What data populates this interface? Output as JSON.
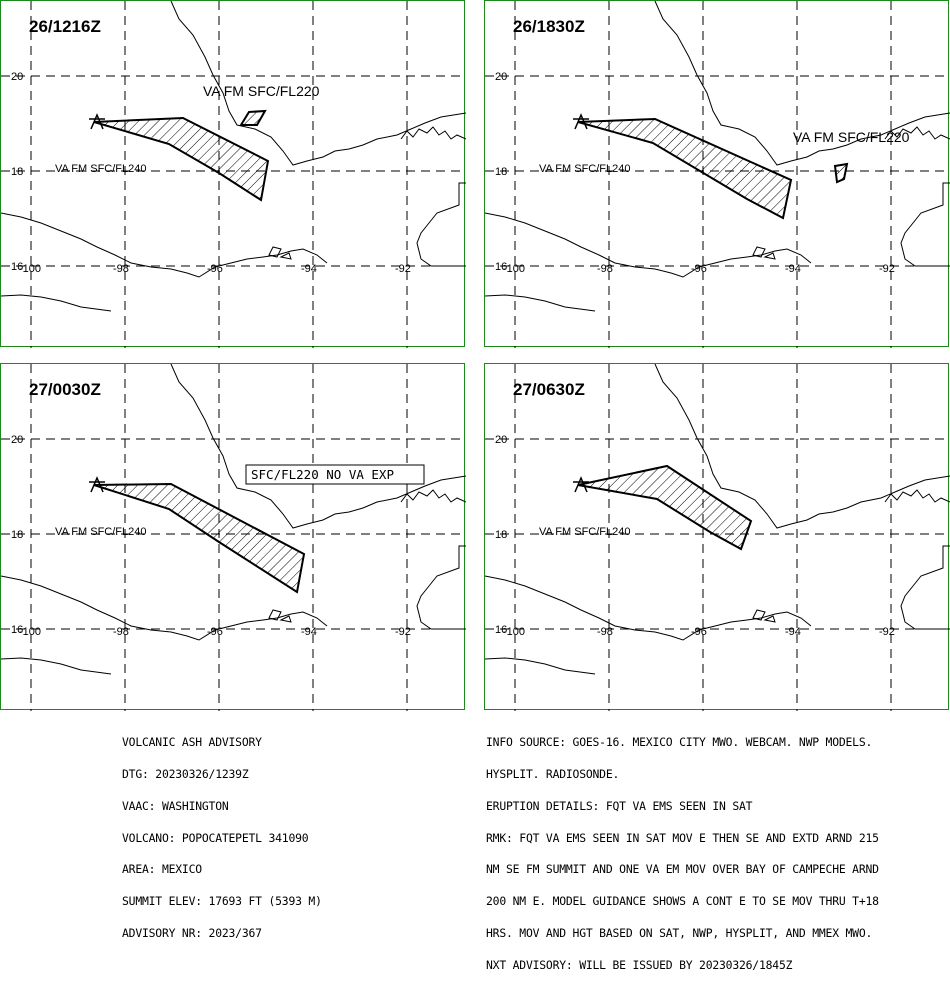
{
  "panels": [
    {
      "time": "26/1216Z",
      "labels": [
        "VA FM SFC/FL220",
        "VA FM SFC/FL240"
      ]
    },
    {
      "time": "26/1830Z",
      "labels": [
        "VA FM SFC/FL220",
        "VA FM SFC/FL240"
      ]
    },
    {
      "time": "27/0030Z",
      "labels": [
        "SFC/FL220 NO VA EXP",
        "VA FM SFC/FL240"
      ]
    },
    {
      "time": "27/0630Z",
      "labels": [
        "VA FM SFC/FL240"
      ]
    }
  ],
  "axis": {
    "lat_labels": [
      "20",
      "18",
      "16"
    ],
    "lon_labels": [
      "-100",
      "-98",
      "-96",
      "-94",
      "-92"
    ]
  },
  "advisory_left": [
    "VOLCANIC ASH ADVISORY",
    "DTG: 20230326/1239Z",
    "VAAC: WASHINGTON",
    "VOLCANO: POPOCATEPETL 341090",
    "AREA: MEXICO",
    "SUMMIT ELEV: 17693 FT (5393 M)",
    "ADVISORY NR: 2023/367"
  ],
  "advisory_right": [
    "INFO SOURCE: GOES-16. MEXICO CITY MWO. WEBCAM. NWP MODELS.",
    "HYSPLIT. RADIOSONDE.",
    "ERUPTION DETAILS: FQT VA EMS SEEN IN SAT",
    "RMK: FQT VA EMS SEEN IN SAT MOV E THEN SE AND EXTD ARND 215",
    "NM SE FM SUMMIT AND ONE VA EM MOV OVER BAY OF CAMPECHE ARND",
    "200 NM E. MODEL GUIDANCE SHOWS A CONT E TO SE MOV THRU T+18",
    "HRS. MOV AND HGT BASED ON SAT, NWP, HYSPLIT, AND MMEX MWO.",
    "NXT ADVISORY: WILL BE ISSUED BY 20230326/1845Z"
  ],
  "colors": {
    "panel_border": "#1a8a1a",
    "lines": "#000000"
  }
}
